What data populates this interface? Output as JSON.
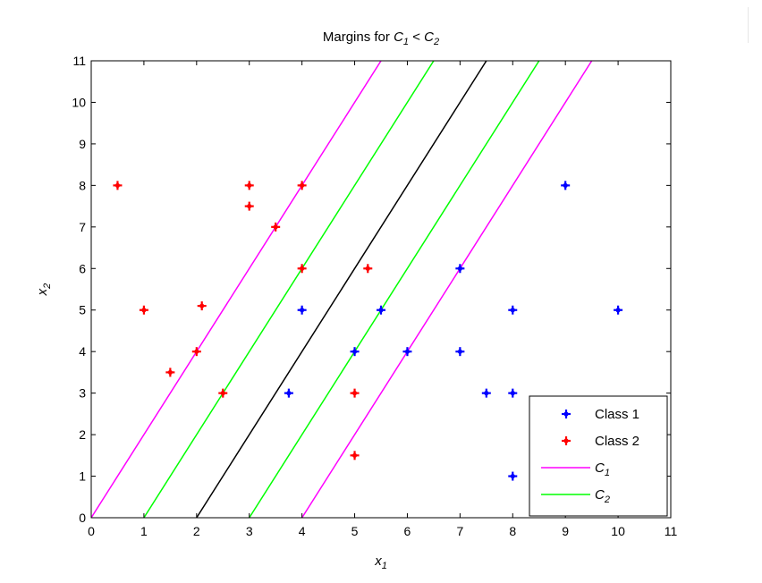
{
  "chart_data": {
    "type": "scatter",
    "title": {
      "text": "Margins for ",
      "c1": "C",
      "c1_sub": "1",
      "op": " < ",
      "c2": "C",
      "c2_sub": "2"
    },
    "xlabel": {
      "base": "x",
      "sub": "1"
    },
    "ylabel": {
      "base": "x",
      "sub": "2"
    },
    "xlim": [
      0,
      11
    ],
    "ylim": [
      0,
      11
    ],
    "xticks": [
      "0",
      "1",
      "2",
      "3",
      "4",
      "5",
      "6",
      "7",
      "8",
      "9",
      "10",
      "11"
    ],
    "yticks": [
      "0",
      "1",
      "2",
      "3",
      "4",
      "5",
      "6",
      "7",
      "8",
      "9",
      "10",
      "11"
    ],
    "grid": false,
    "legend_position": "bottom-right",
    "series": [
      {
        "name": "Class 1",
        "kind": "points",
        "color": "#0000ff",
        "marker": "plus-star",
        "points": [
          [
            9,
            8
          ],
          [
            7,
            6
          ],
          [
            4,
            5
          ],
          [
            5.5,
            5
          ],
          [
            8,
            5
          ],
          [
            10,
            5
          ],
          [
            5,
            4
          ],
          [
            6,
            4
          ],
          [
            7,
            4
          ],
          [
            3.75,
            3
          ],
          [
            7.5,
            3
          ],
          [
            8,
            3
          ],
          [
            8,
            1
          ]
        ]
      },
      {
        "name": "Class 2",
        "kind": "points",
        "color": "#ff0000",
        "marker": "plus-star",
        "points": [
          [
            0.5,
            8
          ],
          [
            3,
            8
          ],
          [
            4,
            8
          ],
          [
            3,
            7.5
          ],
          [
            3.5,
            7
          ],
          [
            4,
            6
          ],
          [
            5.25,
            6
          ],
          [
            1,
            5
          ],
          [
            2.1,
            5.1
          ],
          [
            2,
            4
          ],
          [
            1.5,
            3.5
          ],
          [
            2.5,
            3
          ],
          [
            5,
            3
          ],
          [
            5,
            1.5
          ]
        ]
      },
      {
        "name": "C1",
        "name_base": "C",
        "name_sub": "1",
        "kind": "lines",
        "color": "#ff00ff",
        "lines": [
          [
            [
              0,
              0
            ],
            [
              5.5,
              11
            ]
          ],
          [
            [
              4,
              0
            ],
            [
              9.5,
              11
            ]
          ]
        ]
      },
      {
        "name": "C2",
        "name_base": "C",
        "name_sub": "2",
        "kind": "lines",
        "color": "#00ff00",
        "lines": [
          [
            [
              1,
              0
            ],
            [
              6.5,
              11
            ]
          ],
          [
            [
              3,
              0
            ],
            [
              8.5,
              11
            ]
          ]
        ]
      },
      {
        "kind": "lines",
        "color": "#000000",
        "lines": [
          [
            [
              2,
              0
            ],
            [
              7.5,
              11
            ]
          ]
        ]
      }
    ]
  }
}
